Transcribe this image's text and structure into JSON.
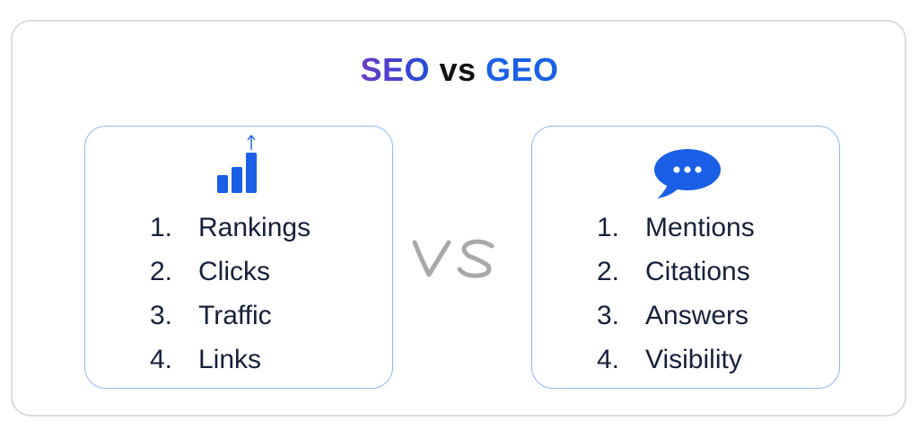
{
  "title": {
    "left": "SEO",
    "middle": "vs",
    "right": "GEO"
  },
  "center_label": "VS",
  "panels": {
    "seo": {
      "icon": "bar-chart-growth-icon",
      "items": [
        {
          "num": "1.",
          "label": "Rankings"
        },
        {
          "num": "2.",
          "label": "Clicks"
        },
        {
          "num": "3.",
          "label": "Traffic"
        },
        {
          "num": "4.",
          "label": "Links"
        }
      ]
    },
    "geo": {
      "icon": "chat-bubble-icon",
      "items": [
        {
          "num": "1.",
          "label": "Mentions"
        },
        {
          "num": "2.",
          "label": "Citations"
        },
        {
          "num": "3.",
          "label": "Answers"
        },
        {
          "num": "4.",
          "label": "Visibility"
        }
      ]
    }
  },
  "colors": {
    "accent_blue": "#1a5fe6",
    "panel_border": "#8fb9ee",
    "text_dark": "#15203a",
    "vs_gray": "#a8a8a8"
  }
}
